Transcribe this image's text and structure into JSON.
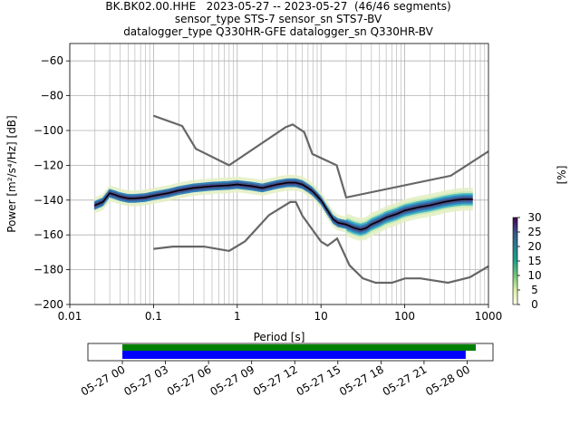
{
  "title_lines": [
    "BK.BK02.00.HHE   2023-05-27 -- 2023-05-27  (46/46 segments)",
    "sensor_type STS-7 sensor_sn STS7-BV",
    "datalogger_type Q330HR-GFE datalogger_sn Q330HR-BV"
  ],
  "chart_data": [
    {
      "type": "line",
      "xscale": "log",
      "xlabel": "Period [s]",
      "ylabel": "Power [m²/s⁴/Hz] [dB]",
      "xlim": [
        0.01,
        1000
      ],
      "ylim": [
        -200,
        -50
      ],
      "xticks": [
        "0.01",
        "0.1",
        "1",
        "10",
        "100",
        "1000"
      ],
      "yticks": [
        "−200",
        "−180",
        "−160",
        "−140",
        "−120",
        "−100",
        "−80",
        "−60"
      ],
      "grid": true,
      "series": [
        {
          "role": "high-noise-model",
          "color": "#666666",
          "x": [
            0.1,
            0.22,
            0.32,
            0.8,
            3.8,
            4.6,
            6.3,
            7.9,
            15.4,
            20,
            354.8,
            1000
          ],
          "y": [
            -91.5,
            -97.4,
            -110.5,
            -120,
            -98,
            -96.5,
            -101,
            -113.5,
            -120,
            -138.5,
            -126,
            -112
          ]
        },
        {
          "role": "low-noise-model",
          "color": "#666666",
          "x": [
            0.1,
            0.17,
            0.4,
            0.8,
            1.24,
            2.4,
            4.3,
            5.0,
            6.0,
            10.0,
            12.0,
            15.6,
            21.9,
            31.6,
            45,
            70,
            101,
            154,
            328,
            600,
            1000
          ],
          "y": [
            -168,
            -166.7,
            -166.7,
            -169.2,
            -163.7,
            -148.6,
            -141.1,
            -141.1,
            -149,
            -163.8,
            -166.2,
            -162.1,
            -177.5,
            -185,
            -187.5,
            -187.5,
            -185,
            -185,
            -187.5,
            -184.4,
            -178
          ]
        },
        {
          "role": "mode",
          "color": "#000000",
          "x": [
            0.02,
            0.025,
            0.03,
            0.035,
            0.04,
            0.05,
            0.06,
            0.08,
            0.1,
            0.15,
            0.2,
            0.3,
            0.5,
            0.8,
            1.0,
            1.5,
            2,
            3,
            4,
            5,
            6,
            7,
            8,
            10,
            12,
            14,
            16,
            20,
            25,
            30,
            35,
            40,
            50,
            60,
            80,
            100,
            150,
            200,
            300,
            400,
            500,
            650
          ],
          "y": [
            -143,
            -141,
            -136,
            -137,
            -138,
            -139,
            -139,
            -138.5,
            -137.5,
            -136,
            -134.5,
            -133,
            -132,
            -131.5,
            -131,
            -132,
            -133,
            -131,
            -130,
            -130,
            -131,
            -133,
            -135,
            -140,
            -146,
            -151,
            -153,
            -154,
            -156,
            -157,
            -156,
            -154,
            -152,
            -150,
            -148,
            -146,
            -144,
            -143,
            -141,
            -140,
            -139.5,
            -139.5
          ]
        }
      ],
      "pdf_band": {
        "note": "probabilistic power density distribution around mode",
        "colors": [
          "#ffffe5",
          "#c7e9b4",
          "#41b6c4",
          "#2c7fb8",
          "#3b528b",
          "#440154"
        ]
      },
      "colorbar": {
        "label": "[%]",
        "ticks": [
          "0",
          "5",
          "10",
          "15",
          "20",
          "25",
          "30"
        ],
        "range": [
          0,
          30
        ]
      }
    },
    {
      "type": "bar",
      "xlabel": "",
      "ticks": [
        "05-27 00",
        "05-27 03",
        "05-27 06",
        "05-27 09",
        "05-27 12",
        "05-27 15",
        "05-27 18",
        "05-27 21",
        "05-28 00"
      ],
      "xlim_hours": [
        -2.4,
        25.8
      ],
      "series": [
        {
          "role": "data-availability",
          "color": "#008000",
          "start_hour": 0,
          "end_hour": 24.6
        },
        {
          "role": "psd-coverage",
          "color": "#0000ff",
          "start_hour": 0,
          "end_hour": 23.9
        }
      ]
    }
  ]
}
